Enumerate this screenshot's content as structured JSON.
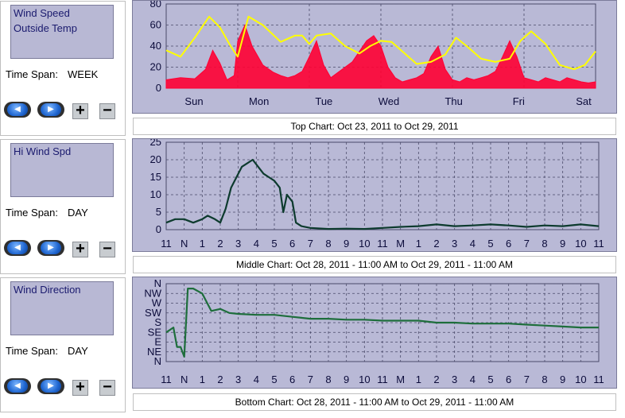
{
  "panels": [
    {
      "selector_lines": [
        "Wind Speed",
        "Outside Temp"
      ],
      "time_span_label": "Time Span:",
      "time_span_value": "WEEK"
    },
    {
      "selector_lines": [
        "Hi Wind Spd"
      ],
      "time_span_label": "Time Span:",
      "time_span_value": "DAY"
    },
    {
      "selector_lines": [
        "Wind Direction"
      ],
      "time_span_label": "Time Span:",
      "time_span_value": "DAY"
    }
  ],
  "controls": {
    "prev_glyph": "◀",
    "next_glyph": "▶",
    "plus": "+",
    "minus": "−"
  },
  "captions": {
    "top": "Top Chart:  Oct 23, 2011  to  Oct 29, 2011",
    "middle": "Middle Chart:  Oct 28, 2011 - 11:00 AM  to  Oct 29, 2011 - 11:00 AM",
    "bottom": "Bottom Chart:  Oct 28, 2011 - 11:00 AM  to  Oct 29, 2011 - 11:00 AM"
  },
  "colors": {
    "plot_bg": "#b9b9d6",
    "wind": "#ff0033",
    "temp": "#ffff00",
    "hi_wind": "#0d3b2e",
    "direction": "#1e6e3c",
    "grid": "#4a4a6a"
  },
  "chart_data": [
    {
      "type": "area",
      "title": "",
      "x_tick_labels": [
        "Sun",
        "Mon",
        "Tue",
        "Wed",
        "Thu",
        "Fri",
        "Sat"
      ],
      "y_tick_labels": [
        "80",
        "60",
        "40",
        "20",
        "0"
      ],
      "ylim": [
        0,
        80
      ],
      "grid": true,
      "series": [
        {
          "kind": "wind_speed",
          "x": [
            0.0,
            0.2,
            0.4,
            0.55,
            0.65,
            0.75,
            0.85,
            0.95,
            1.0,
            1.1,
            1.2,
            1.35,
            1.5,
            1.6,
            1.7,
            1.8,
            1.9,
            2.0,
            2.1,
            2.2,
            2.3,
            2.4,
            2.5,
            2.6,
            2.7,
            2.8,
            2.9,
            3.0,
            3.1,
            3.2,
            3.3,
            3.4,
            3.5,
            3.6,
            3.7,
            3.8,
            3.9,
            4.0,
            4.1,
            4.2,
            4.3,
            4.4,
            4.5,
            4.6,
            4.7,
            4.8,
            4.9,
            5.0,
            5.1,
            5.2,
            5.3,
            5.4,
            5.5,
            5.6,
            5.7,
            5.8,
            5.9,
            6.0
          ],
          "values": [
            8,
            10,
            9,
            18,
            36,
            24,
            8,
            12,
            45,
            60,
            40,
            22,
            15,
            12,
            10,
            12,
            16,
            30,
            45,
            22,
            10,
            15,
            20,
            25,
            35,
            45,
            50,
            40,
            20,
            10,
            6,
            8,
            10,
            14,
            30,
            40,
            18,
            8,
            6,
            10,
            8,
            10,
            12,
            16,
            30,
            45,
            30,
            10,
            8,
            6,
            10,
            8,
            6,
            10,
            8,
            6,
            5,
            6
          ]
        },
        {
          "kind": "outside_temp",
          "x": [
            0.0,
            0.2,
            0.4,
            0.6,
            0.75,
            0.9,
            1.0,
            1.15,
            1.35,
            1.6,
            1.8,
            1.9,
            2.0,
            2.1,
            2.3,
            2.5,
            2.7,
            2.85,
            3.0,
            3.15,
            3.35,
            3.5,
            3.7,
            3.9,
            4.05,
            4.2,
            4.4,
            4.6,
            4.8,
            4.95,
            5.1,
            5.3,
            5.5,
            5.7,
            5.85,
            6.0
          ],
          "values": [
            36,
            30,
            48,
            68,
            58,
            40,
            30,
            68,
            60,
            44,
            50,
            50,
            42,
            50,
            52,
            40,
            33,
            40,
            45,
            44,
            32,
            23,
            25,
            32,
            48,
            40,
            28,
            25,
            28,
            45,
            54,
            42,
            22,
            18,
            22,
            35
          ]
        }
      ]
    },
    {
      "type": "line",
      "title": "",
      "x_tick_labels": [
        "11",
        "N",
        "1",
        "2",
        "3",
        "4",
        "5",
        "6",
        "7",
        "8",
        "9",
        "10",
        "11",
        "M",
        "1",
        "2",
        "3",
        "4",
        "5",
        "6",
        "7",
        "8",
        "9",
        "10",
        "11"
      ],
      "y_tick_labels": [
        "25",
        "20",
        "15",
        "10",
        "5",
        "0"
      ],
      "ylim": [
        0,
        25
      ],
      "grid": true,
      "series": [
        {
          "kind": "hi_wind_speed",
          "x": [
            0,
            0.5,
            1,
            1.5,
            2,
            2.3,
            2.7,
            3,
            3.3,
            3.6,
            3.9,
            4.2,
            4.5,
            4.8,
            5.1,
            5.4,
            5.7,
            6,
            6.3,
            6.5,
            6.7,
            7,
            7.2,
            7.5,
            8,
            9,
            10,
            11,
            12,
            13,
            14,
            15,
            16,
            17,
            18,
            19,
            20,
            21,
            22,
            23,
            24
          ],
          "values": [
            2,
            3,
            3,
            2,
            3,
            4,
            3,
            2,
            6,
            12,
            15,
            18,
            19,
            20,
            18,
            16,
            15,
            14,
            12,
            5,
            10,
            8,
            2,
            1,
            0.5,
            0.2,
            0.3,
            0.2,
            0.5,
            0.8,
            1,
            1.5,
            1,
            1.2,
            1.5,
            1.2,
            0.8,
            1.2,
            1,
            1.5,
            1
          ]
        }
      ]
    },
    {
      "type": "line",
      "title": "",
      "x_tick_labels": [
        "11",
        "N",
        "1",
        "2",
        "3",
        "4",
        "5",
        "6",
        "7",
        "8",
        "9",
        "10",
        "11",
        "M",
        "1",
        "2",
        "3",
        "4",
        "5",
        "6",
        "7",
        "8",
        "9",
        "10",
        "11"
      ],
      "y_tick_labels": [
        "N",
        "NW",
        "W",
        "SW",
        "S",
        "SE",
        "E",
        "NE",
        "N"
      ],
      "ylim": [
        0,
        8
      ],
      "grid": true,
      "series": [
        {
          "kind": "wind_direction",
          "x": [
            0,
            0.4,
            0.6,
            0.8,
            1,
            1.2,
            1.5,
            2,
            2.5,
            3,
            3.5,
            4,
            5,
            6,
            7,
            7.5,
            8,
            9,
            10,
            11,
            12,
            13,
            14,
            15,
            16,
            17,
            18,
            19,
            20,
            21,
            22,
            23,
            24
          ],
          "values": [
            3,
            3.5,
            1.5,
            1.5,
            0.5,
            7.5,
            7.5,
            7,
            5.2,
            5.4,
            5,
            4.9,
            4.8,
            4.8,
            4.6,
            4.5,
            4.4,
            4.4,
            4.3,
            4.3,
            4.2,
            4.2,
            4.2,
            4,
            4,
            3.9,
            3.9,
            3.9,
            3.8,
            3.7,
            3.6,
            3.5,
            3.5
          ]
        }
      ]
    }
  ]
}
